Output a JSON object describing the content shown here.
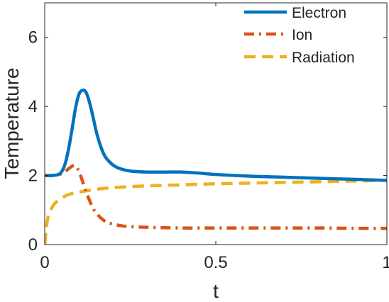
{
  "chart_data": {
    "type": "line",
    "title": "",
    "xlabel": "t",
    "ylabel": "Temperature",
    "xlim": [
      0,
      1
    ],
    "ylim": [
      0,
      7
    ],
    "xticks": [
      0,
      0.5,
      1
    ],
    "xtick_labels": [
      "0",
      "0.5",
      "1"
    ],
    "yticks": [
      0,
      2,
      4,
      6
    ],
    "ytick_labels": [
      "0",
      "2",
      "4",
      "6"
    ],
    "grid": false,
    "legend_position": "top-right",
    "series": [
      {
        "name": "Electron",
        "color": "#0072bd",
        "style": "solid",
        "x": [
          0,
          0.02,
          0.04,
          0.05,
          0.06,
          0.07,
          0.08,
          0.09,
          0.1,
          0.11,
          0.12,
          0.13,
          0.14,
          0.15,
          0.16,
          0.17,
          0.18,
          0.2,
          0.22,
          0.25,
          0.3,
          0.35,
          0.4,
          0.45,
          0.5,
          0.6,
          0.7,
          0.8,
          0.9,
          1.0
        ],
        "y": [
          2.0,
          2.0,
          2.03,
          2.12,
          2.35,
          2.78,
          3.35,
          3.95,
          4.35,
          4.47,
          4.42,
          4.15,
          3.75,
          3.3,
          2.95,
          2.68,
          2.5,
          2.3,
          2.2,
          2.13,
          2.1,
          2.1,
          2.1,
          2.07,
          2.03,
          1.98,
          1.95,
          1.92,
          1.89,
          1.86
        ]
      },
      {
        "name": "Ion",
        "color": "#d95319",
        "style": "dashdot",
        "x": [
          0,
          0.02,
          0.04,
          0.06,
          0.08,
          0.09,
          0.1,
          0.11,
          0.12,
          0.13,
          0.14,
          0.15,
          0.17,
          0.19,
          0.22,
          0.25,
          0.3,
          0.4,
          0.5,
          0.6,
          0.7,
          0.8,
          0.9,
          1.0
        ],
        "y": [
          2.0,
          2.0,
          2.02,
          2.12,
          2.27,
          2.28,
          2.12,
          1.85,
          1.55,
          1.3,
          1.08,
          0.92,
          0.72,
          0.62,
          0.55,
          0.52,
          0.5,
          0.48,
          0.48,
          0.48,
          0.48,
          0.48,
          0.47,
          0.47
        ]
      },
      {
        "name": "Radiation",
        "color": "#edb120",
        "style": "dashed",
        "x": [
          0,
          0.005,
          0.01,
          0.02,
          0.03,
          0.05,
          0.07,
          0.1,
          0.15,
          0.2,
          0.3,
          0.4,
          0.5,
          0.6,
          0.7,
          0.8,
          0.9,
          1.0
        ],
        "y": [
          0,
          0.5,
          0.8,
          1.05,
          1.2,
          1.35,
          1.45,
          1.52,
          1.6,
          1.65,
          1.7,
          1.73,
          1.76,
          1.78,
          1.8,
          1.82,
          1.84,
          1.86
        ]
      }
    ]
  }
}
